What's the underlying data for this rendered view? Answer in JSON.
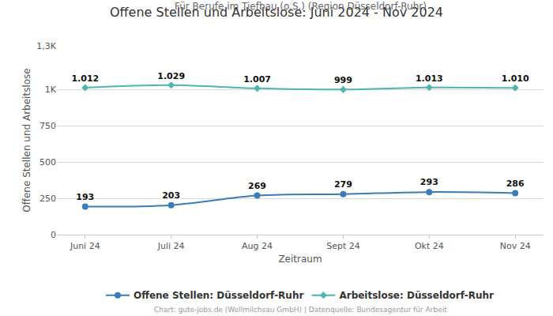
{
  "chart_data": {
    "type": "line",
    "title": "Offene Stellen und Arbeitslose: Juni 2024 - Nov 2024",
    "subtitle": "Für Berufe im Tiefbau (o.S.) (Region Düsseldorf-Ruhr)",
    "x_label": "Zeitraum",
    "y_label": "Offene Stellen und Arbeitslose",
    "annotations": [
      "Chart: gute-jobs.de (Wollmilchsau GmbH) | Datenquelle: Bundesagentur für Arbeit"
    ],
    "categories": [
      "Juni 24",
      "Juli 24",
      "Aug 24",
      "Sept 24",
      "Okt 24",
      "Nov 24"
    ],
    "series": [
      {
        "name": "Offene Stellen: Düsseldorf-Ruhr",
        "color": "#3a7cb8",
        "marker": "circle",
        "line_style": "solid",
        "values": [
          193,
          203,
          269,
          279,
          293,
          286
        ]
      },
      {
        "name": "Arbeitslose: Düsseldorf-Ruhr",
        "color": "#4fb5ae",
        "marker": "diamond",
        "line_style": "solid",
        "values": [
          1012,
          1029,
          1007,
          999,
          1013,
          1010
        ],
        "value_labels": [
          "1.012",
          "1.029",
          "1.007",
          "999",
          "1.013",
          "1.010"
        ]
      }
    ],
    "ylim": [
      0,
      1300
    ],
    "yticks": [
      0,
      250,
      500,
      750,
      {
        "value": 1000,
        "label": "1K"
      },
      {
        "value": 1300,
        "label": "1,3K"
      }
    ],
    "grid": true,
    "legend": "bottom",
    "data_labels": true
  }
}
